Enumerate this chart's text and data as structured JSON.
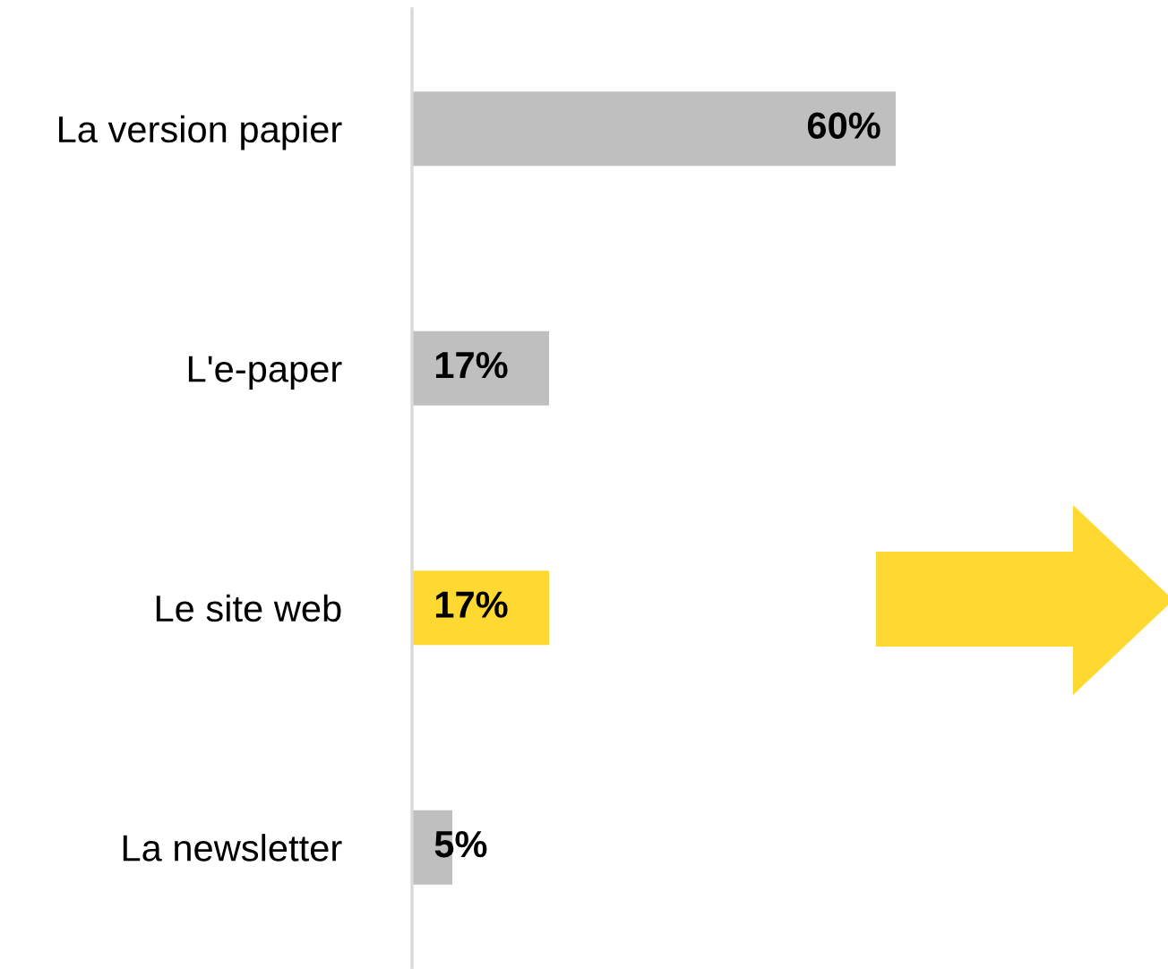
{
  "chart_data": {
    "type": "bar",
    "orientation": "horizontal",
    "categories": [
      "La version papier",
      "L'e-paper",
      "Le site web",
      "La newsletter"
    ],
    "values": [
      60,
      17,
      17,
      5
    ],
    "colors": [
      "#bfbfbf",
      "#bfbfbf",
      "#ffd932",
      "#bfbfbf"
    ],
    "value_labels": [
      "60%",
      "17%",
      "17%",
      "5%"
    ],
    "xlim": [
      0,
      60
    ],
    "tick_labels": "y",
    "grid": false,
    "legend": false
  }
}
